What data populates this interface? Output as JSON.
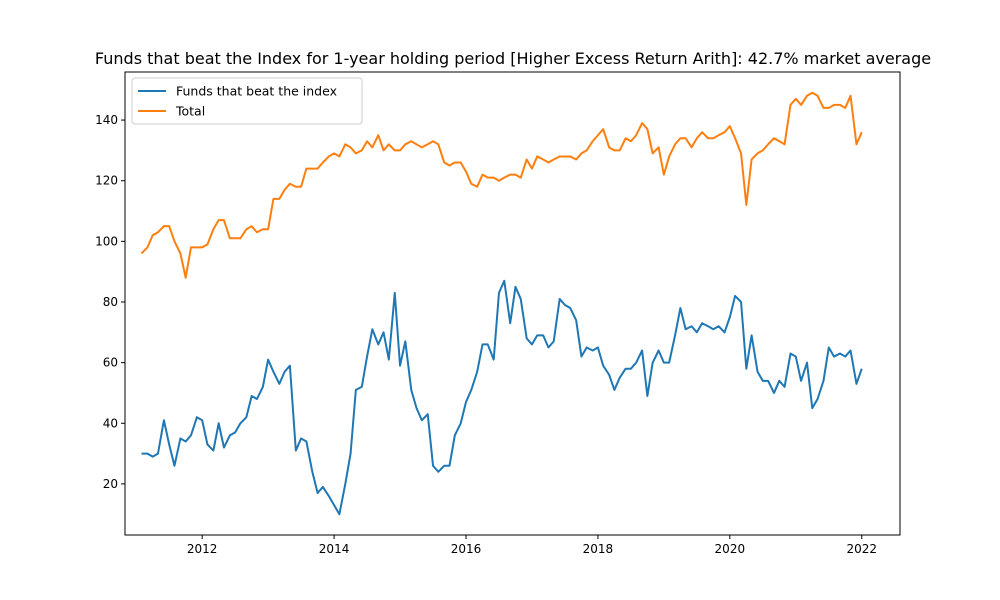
{
  "chart_data": {
    "type": "line",
    "title": "Funds that beat the Index for 1-year holding period [Higher Excess Return Arith]: 42.7% market average",
    "xlabel": "",
    "ylabel": "",
    "xlim": [
      2010.83,
      2022.58
    ],
    "ylim": [
      3.15,
      155.85
    ],
    "x_ticks": [
      2012,
      2014,
      2016,
      2018,
      2020,
      2022
    ],
    "y_ticks": [
      20,
      40,
      60,
      80,
      100,
      120,
      140
    ],
    "grid": false,
    "legend_position": "top-left",
    "series": [
      {
        "name": "Funds that beat the index",
        "color": "#1f77b4",
        "x": [
          2011.08,
          2011.17,
          2011.25,
          2011.33,
          2011.42,
          2011.5,
          2011.58,
          2011.67,
          2011.75,
          2011.83,
          2011.92,
          2012.0,
          2012.08,
          2012.17,
          2012.25,
          2012.33,
          2012.42,
          2012.5,
          2012.58,
          2012.67,
          2012.75,
          2012.83,
          2012.92,
          2013.0,
          2013.08,
          2013.17,
          2013.25,
          2013.33,
          2013.42,
          2013.5,
          2013.58,
          2013.67,
          2013.75,
          2013.83,
          2013.92,
          2014.0,
          2014.08,
          2014.17,
          2014.25,
          2014.33,
          2014.42,
          2014.5,
          2014.58,
          2014.67,
          2014.75,
          2014.83,
          2014.92,
          2015.0,
          2015.08,
          2015.17,
          2015.25,
          2015.33,
          2015.42,
          2015.5,
          2015.58,
          2015.67,
          2015.75,
          2015.83,
          2015.92,
          2016.0,
          2016.08,
          2016.17,
          2016.25,
          2016.33,
          2016.42,
          2016.5,
          2016.58,
          2016.67,
          2016.75,
          2016.83,
          2016.92,
          2017.0,
          2017.08,
          2017.17,
          2017.25,
          2017.33,
          2017.42,
          2017.5,
          2017.58,
          2017.67,
          2017.75,
          2017.83,
          2017.92,
          2018.0,
          2018.08,
          2018.17,
          2018.25,
          2018.33,
          2018.42,
          2018.5,
          2018.58,
          2018.67,
          2018.75,
          2018.83,
          2018.92,
          2019.0,
          2019.08,
          2019.17,
          2019.25,
          2019.33,
          2019.42,
          2019.5,
          2019.58,
          2019.67,
          2019.75,
          2019.83,
          2019.92,
          2020.0,
          2020.08,
          2020.17,
          2020.25,
          2020.33,
          2020.42,
          2020.5,
          2020.58,
          2020.67,
          2020.75,
          2020.83,
          2020.92,
          2021.0,
          2021.08,
          2021.17,
          2021.25,
          2021.33,
          2021.42,
          2021.5,
          2021.58,
          2021.67,
          2021.75,
          2021.83,
          2021.92,
          2022.0
        ],
        "values": [
          30,
          30,
          29,
          30,
          41,
          33,
          26,
          35,
          34,
          36,
          42,
          41,
          33,
          31,
          40,
          32,
          36,
          37,
          40,
          42,
          49,
          48,
          52,
          61,
          57,
          53,
          57,
          59,
          31,
          35,
          34,
          24,
          17,
          19,
          16,
          13,
          10,
          20,
          30,
          51,
          52,
          62,
          71,
          66,
          70,
          61,
          83,
          59,
          67,
          51,
          45,
          41,
          43,
          26,
          24,
          26,
          26,
          36,
          40,
          47,
          51,
          57,
          66,
          66,
          61,
          83,
          87,
          73,
          85,
          81,
          68,
          66,
          69,
          69,
          65,
          67,
          81,
          79,
          78,
          74,
          62,
          65,
          64,
          65,
          59,
          56,
          51,
          55,
          58,
          58,
          60,
          64,
          49,
          60,
          64,
          60,
          60,
          69,
          78,
          71,
          72,
          70,
          73,
          72,
          71,
          72,
          70,
          75,
          82,
          80,
          58,
          69,
          57,
          54,
          54,
          50,
          54,
          52,
          63,
          62,
          54,
          60,
          45,
          48,
          54,
          65,
          62,
          63,
          62,
          64,
          53,
          58
        ]
      },
      {
        "name": "Total",
        "color": "#ff7f0e",
        "x": [
          2011.08,
          2011.17,
          2011.25,
          2011.33,
          2011.42,
          2011.5,
          2011.58,
          2011.67,
          2011.75,
          2011.83,
          2011.92,
          2012.0,
          2012.08,
          2012.17,
          2012.25,
          2012.33,
          2012.42,
          2012.5,
          2012.58,
          2012.67,
          2012.75,
          2012.83,
          2012.92,
          2013.0,
          2013.08,
          2013.17,
          2013.25,
          2013.33,
          2013.42,
          2013.5,
          2013.58,
          2013.67,
          2013.75,
          2013.83,
          2013.92,
          2014.0,
          2014.08,
          2014.17,
          2014.25,
          2014.33,
          2014.42,
          2014.5,
          2014.58,
          2014.67,
          2014.75,
          2014.83,
          2014.92,
          2015.0,
          2015.08,
          2015.17,
          2015.25,
          2015.33,
          2015.42,
          2015.5,
          2015.58,
          2015.67,
          2015.75,
          2015.83,
          2015.92,
          2016.0,
          2016.08,
          2016.17,
          2016.25,
          2016.33,
          2016.42,
          2016.5,
          2016.58,
          2016.67,
          2016.75,
          2016.83,
          2016.92,
          2017.0,
          2017.08,
          2017.17,
          2017.25,
          2017.33,
          2017.42,
          2017.5,
          2017.58,
          2017.67,
          2017.75,
          2017.83,
          2017.92,
          2018.0,
          2018.08,
          2018.17,
          2018.25,
          2018.33,
          2018.42,
          2018.5,
          2018.58,
          2018.67,
          2018.75,
          2018.83,
          2018.92,
          2019.0,
          2019.08,
          2019.17,
          2019.25,
          2019.33,
          2019.42,
          2019.5,
          2019.58,
          2019.67,
          2019.75,
          2019.83,
          2019.92,
          2020.0,
          2020.08,
          2020.17,
          2020.25,
          2020.33,
          2020.42,
          2020.5,
          2020.58,
          2020.67,
          2020.75,
          2020.83,
          2020.92,
          2021.0,
          2021.08,
          2021.17,
          2021.25,
          2021.33,
          2021.42,
          2021.5,
          2021.58,
          2021.67,
          2021.75,
          2021.83,
          2021.92,
          2022.0
        ],
        "values": [
          96,
          98,
          102,
          103,
          105,
          105,
          100,
          96,
          88,
          98,
          98,
          98,
          99,
          104,
          107,
          107,
          101,
          101,
          101,
          104,
          105,
          103,
          104,
          104,
          114,
          114,
          117,
          119,
          118,
          118,
          124,
          124,
          124,
          126,
          128,
          129,
          128,
          132,
          131,
          129,
          130,
          133,
          131,
          135,
          130,
          132,
          130,
          130,
          132,
          133,
          132,
          131,
          132,
          133,
          132,
          126,
          125,
          126,
          126,
          123,
          119,
          118,
          122,
          121,
          121,
          120,
          121,
          122,
          122,
          121,
          127,
          124,
          128,
          127,
          126,
          127,
          128,
          128,
          128,
          127,
          129,
          130,
          133,
          135,
          137,
          131,
          130,
          130,
          134,
          133,
          135,
          139,
          137,
          129,
          131,
          122,
          128,
          132,
          134,
          134,
          131,
          134,
          136,
          134,
          134,
          135,
          136,
          138,
          134,
          129,
          112,
          127,
          129,
          130,
          132,
          134,
          133,
          132,
          145,
          147,
          145,
          148,
          149,
          148,
          144,
          144,
          145,
          145,
          144,
          148,
          132,
          136
        ]
      }
    ]
  }
}
